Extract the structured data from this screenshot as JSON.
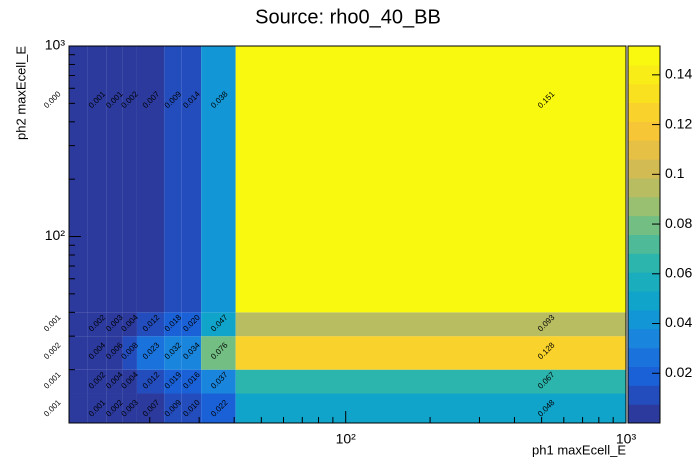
{
  "chart_data": {
    "type": "heatmap",
    "title": "Source: rho0_40_BB",
    "x_label": "ph1 maxEcell_E",
    "y_label": "ph2 maxEcell_E",
    "x_edges": [
      6,
      12,
      14,
      16,
      18,
      22.5,
      26,
      30.5,
      40.5,
      1000
    ],
    "y_edges": [
      10,
      15,
      20,
      30,
      40,
      1000
    ],
    "values": [
      [
        0.001,
        0.001,
        0.002,
        0.003,
        0.007,
        0.009,
        0.01,
        0.022,
        0.048
      ],
      [
        0.001,
        0.002,
        0.004,
        0.004,
        0.012,
        0.019,
        0.016,
        0.037,
        0.067
      ],
      [
        0.002,
        0.004,
        0.006,
        0.008,
        0.023,
        0.032,
        0.034,
        0.076,
        0.128
      ],
      [
        0.001,
        0.002,
        0.003,
        0.004,
        0.012,
        0.018,
        0.02,
        0.047,
        0.093
      ],
      [
        0.0,
        0.001,
        0.001,
        0.002,
        0.007,
        0.009,
        0.014,
        0.038,
        0.151
      ]
    ],
    "value_labels": [
      [
        "0.001",
        "0.001",
        "0.002",
        "0.003",
        "0.007",
        "0.009",
        "0.010",
        "0.022",
        "0.048"
      ],
      [
        "0.001",
        "0.002",
        "0.004",
        "0.004",
        "0.012",
        "0.019",
        "0.016",
        "0.037",
        "0.067"
      ],
      [
        "0.002",
        "0.004",
        "0.006",
        "0.008",
        "0.023",
        "0.032",
        "0.034",
        "0.076",
        "0.128"
      ],
      [
        "0.001",
        "0.002",
        "0.003",
        "0.004",
        "0.012",
        "0.018",
        "0.020",
        "0.047",
        "0.093"
      ],
      [
        "0.000",
        "0.001",
        "0.001",
        "0.002",
        "0.007",
        "0.009",
        "0.014",
        "0.038",
        "0.151"
      ]
    ],
    "xlim": [
      10.3,
      1000
    ],
    "ylim": [
      10.5,
      1000
    ],
    "zlim": [
      0,
      0.1516
    ],
    "log_x": true,
    "log_y": true,
    "xticks": [
      {
        "value": 100,
        "label": "10²"
      },
      {
        "value": 1000,
        "label": "10³"
      }
    ],
    "yticks": [
      {
        "value": 100,
        "label": "10²"
      },
      {
        "value": 1000,
        "label": "10³"
      }
    ],
    "xminorticks": [
      20,
      30,
      40,
      50,
      60,
      70,
      80,
      90,
      200,
      300,
      400,
      500,
      600,
      700,
      800,
      900
    ],
    "yminorticks": [
      20,
      30,
      40,
      50,
      60,
      70,
      80,
      90,
      200,
      300,
      400,
      500,
      600,
      700,
      800,
      900
    ],
    "zticks": [
      0.02,
      0.04,
      0.06,
      0.08,
      0.1,
      0.12,
      0.14
    ],
    "palette": [
      "#2c3a9e",
      "#1a5fd8",
      "#1a82df",
      "#0ea1cf",
      "#1fb3b5",
      "#5fbd8c",
      "#a8bf6a",
      "#dbba4f",
      "#f9c733",
      "#f9e21f",
      "#f9f90f"
    ],
    "palette_bands": 20
  }
}
